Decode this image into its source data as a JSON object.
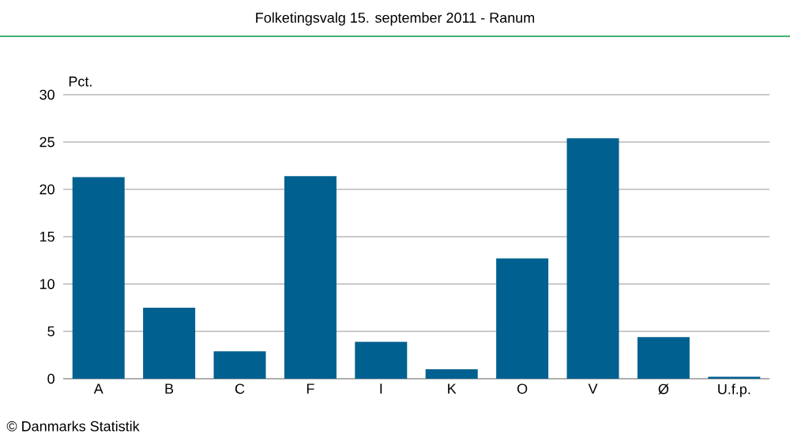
{
  "chart_data": {
    "type": "bar",
    "title": "Folketingsvalg 15. september 2011 - Ranum",
    "ylabel": "Pct.",
    "categories": [
      "A",
      "B",
      "C",
      "F",
      "I",
      "K",
      "O",
      "V",
      "Ø",
      "U.f.p."
    ],
    "values": [
      21.3,
      7.5,
      2.9,
      21.4,
      3.9,
      1.0,
      12.7,
      25.4,
      4.4,
      0.2
    ],
    "color": "#006090",
    "ylim": [
      0,
      30
    ],
    "yticks": [
      0,
      5,
      10,
      15,
      20,
      25,
      30
    ],
    "grid": "y",
    "annotations": [
      "© Danmarks Statistik"
    ]
  }
}
